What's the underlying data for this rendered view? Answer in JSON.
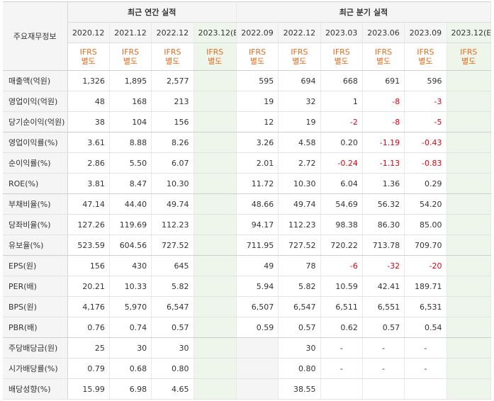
{
  "header": {
    "corner_label": "주요재무정보",
    "annual_title": "최근 연간 실적",
    "quarterly_title": "최근 분기 실적",
    "ifrs_line1": "IFRS",
    "ifrs_line2": "별도",
    "annual_periods": [
      "2020.12",
      "2021.12",
      "2022.12",
      "2023.12(E)"
    ],
    "quarterly_periods": [
      "2022.09",
      "2022.12",
      "2023.03",
      "2023.06",
      "2023.09",
      "2023.12(E)"
    ]
  },
  "rows": [
    {
      "label": "매출액(억원)",
      "values": [
        "1,326",
        "1,895",
        "2,577",
        "",
        "595",
        "694",
        "668",
        "691",
        "596",
        ""
      ]
    },
    {
      "label": "영업이익(억원)",
      "values": [
        "48",
        "168",
        "213",
        "",
        "19",
        "32",
        "1",
        "-8",
        "-3",
        ""
      ]
    },
    {
      "label": "당기순이익(억원)",
      "values": [
        "38",
        "104",
        "156",
        "",
        "12",
        "19",
        "-2",
        "-8",
        "-5",
        ""
      ]
    },
    {
      "label": "영업이익률(%)",
      "values": [
        "3.61",
        "8.88",
        "8.26",
        "",
        "3.26",
        "4.58",
        "0.20",
        "-1.19",
        "-0.43",
        ""
      ]
    },
    {
      "label": "순이익률(%)",
      "values": [
        "2.86",
        "5.50",
        "6.07",
        "",
        "2.01",
        "2.72",
        "-0.24",
        "-1.13",
        "-0.83",
        ""
      ]
    },
    {
      "label": "ROE(%)",
      "values": [
        "3.81",
        "8.47",
        "10.30",
        "",
        "11.72",
        "10.30",
        "6.04",
        "1.36",
        "0.29",
        ""
      ]
    },
    {
      "label": "부채비율(%)",
      "values": [
        "47.14",
        "44.40",
        "49.74",
        "",
        "48.66",
        "49.74",
        "54.69",
        "56.32",
        "54.20",
        ""
      ]
    },
    {
      "label": "당좌비율(%)",
      "values": [
        "127.26",
        "119.69",
        "112.23",
        "",
        "94.17",
        "112.23",
        "98.38",
        "86.30",
        "85.00",
        ""
      ]
    },
    {
      "label": "유보율(%)",
      "values": [
        "523.59",
        "604.56",
        "727.52",
        "",
        "711.95",
        "727.52",
        "720.22",
        "713.78",
        "709.70",
        ""
      ]
    },
    {
      "label": "EPS(원)",
      "values": [
        "156",
        "430",
        "645",
        "",
        "49",
        "78",
        "-6",
        "-32",
        "-20",
        ""
      ]
    },
    {
      "label": "PER(배)",
      "values": [
        "20.21",
        "10.33",
        "5.82",
        "",
        "5.94",
        "5.82",
        "10.59",
        "42.41",
        "189.71",
        ""
      ]
    },
    {
      "label": "BPS(원)",
      "values": [
        "4,176",
        "5,970",
        "6,547",
        "",
        "6,507",
        "6,547",
        "6,511",
        "6,551",
        "6,531",
        ""
      ]
    },
    {
      "label": "PBR(배)",
      "values": [
        "0.76",
        "0.74",
        "0.57",
        "",
        "0.59",
        "0.57",
        "0.62",
        "0.57",
        "0.54",
        ""
      ]
    },
    {
      "label": "주당배당금(원)",
      "values": [
        "25",
        "30",
        "30",
        "",
        "",
        "30",
        "-",
        "-",
        "-",
        ""
      ],
      "blank_cols": [
        4
      ]
    },
    {
      "label": "시가배당률(%)",
      "values": [
        "0.79",
        "0.68",
        "0.80",
        "",
        "",
        "0.80",
        "-",
        "-",
        "-",
        ""
      ],
      "blank_cols": [
        4
      ]
    },
    {
      "label": "배당성향(%)",
      "values": [
        "15.99",
        "6.98",
        "4.65",
        "",
        "",
        "38.55",
        "",
        "",
        "",
        ""
      ],
      "blank_cols": [
        4
      ]
    }
  ],
  "colors": {
    "negative": "#e60012",
    "ifrs": "#e66c1c",
    "estimate_bg": "#eef6ec",
    "label_bg": "#f5f5f5"
  }
}
